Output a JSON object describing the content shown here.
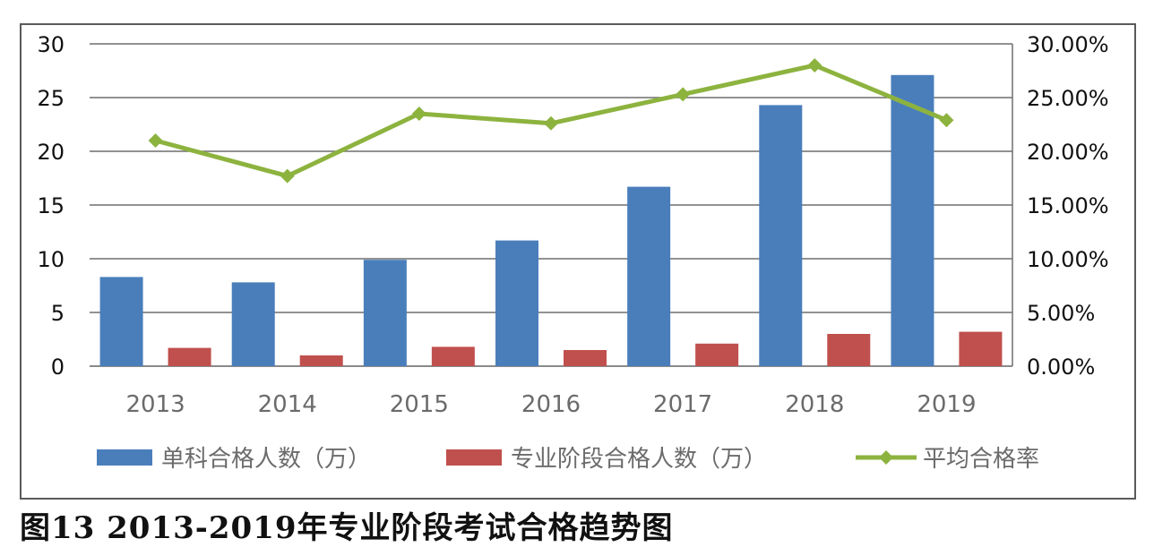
{
  "caption": "图13  2013-2019年专业阶段考试合格趋势图",
  "chart_data": {
    "type": "bar",
    "categories": [
      "2013",
      "2014",
      "2015",
      "2016",
      "2017",
      "2018",
      "2019"
    ],
    "series": [
      {
        "name": "单科合格人数（万）",
        "kind": "bar",
        "axis": "left",
        "color": "#4a7ebb",
        "values": [
          8.3,
          7.8,
          9.9,
          11.7,
          16.7,
          24.3,
          27.1
        ]
      },
      {
        "name": "专业阶段合格人数（万）",
        "kind": "bar",
        "axis": "left",
        "color": "#c0504d",
        "values": [
          1.7,
          1.0,
          1.8,
          1.5,
          2.1,
          3.0,
          3.2
        ]
      },
      {
        "name": "平均合格率",
        "kind": "line",
        "axis": "right",
        "color": "#8db33f",
        "values": [
          21.0,
          17.7,
          23.5,
          22.6,
          25.3,
          28.0,
          22.9
        ]
      }
    ],
    "y_left": {
      "ylim": [
        0,
        30
      ],
      "ticks": [
        "0",
        "5",
        "10",
        "15",
        "20",
        "25",
        "30"
      ]
    },
    "y_right": {
      "ylim": [
        0,
        30
      ],
      "ticks": [
        "0.00%",
        "5.00%",
        "10.00%",
        "15.00%",
        "20.00%",
        "25.00%",
        "30.00%"
      ]
    },
    "grid": true,
    "legend": "bottom"
  }
}
